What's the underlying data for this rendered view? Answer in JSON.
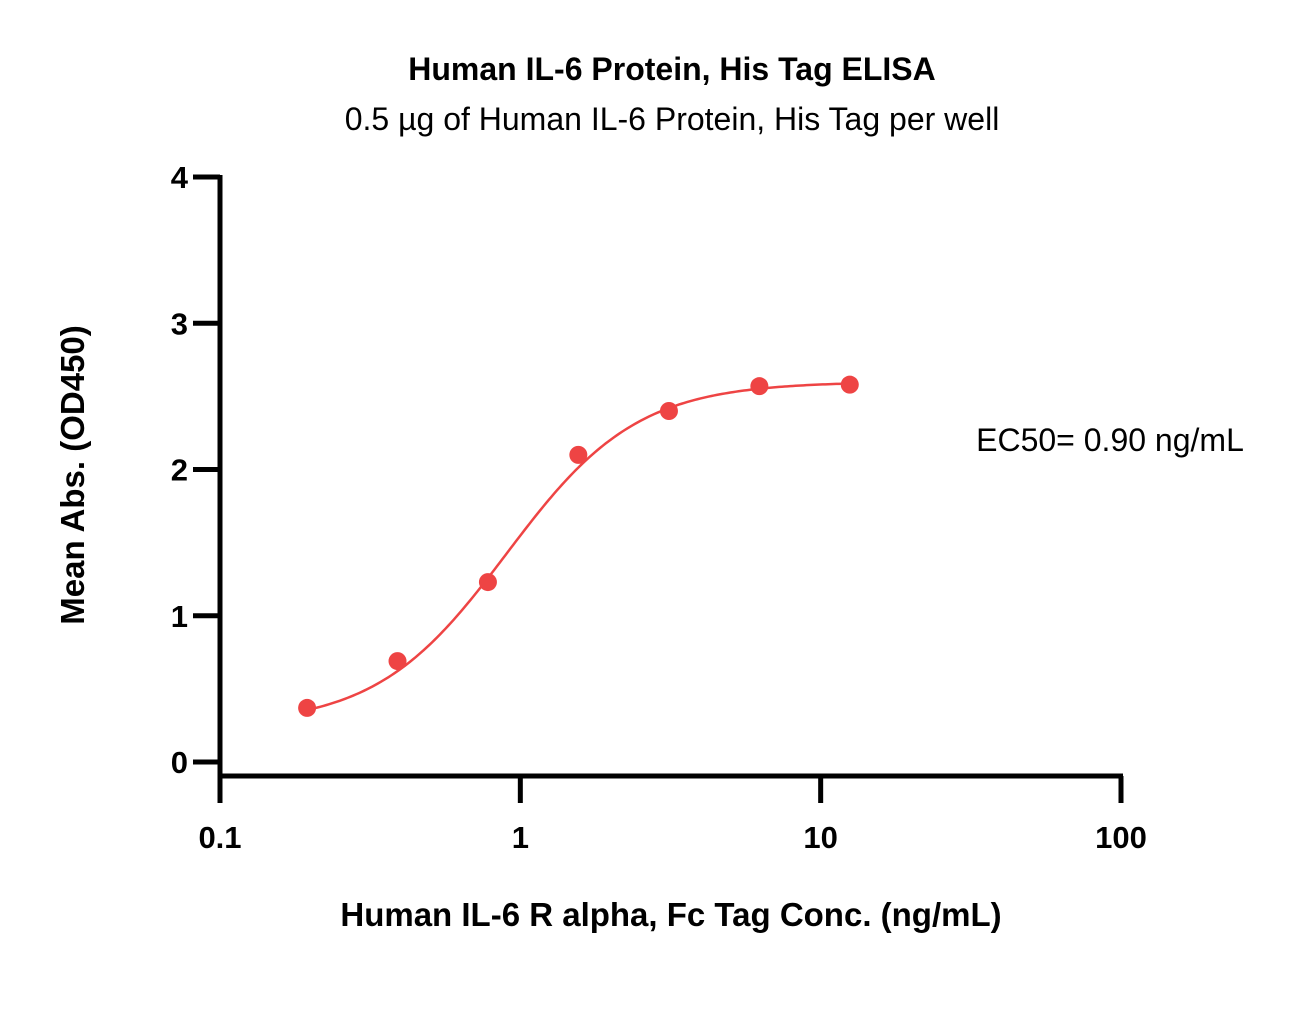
{
  "chart_data": {
    "type": "scatter",
    "title": "Human IL-6 Protein, His Tag ELISA",
    "subtitle": "0.5 µg of Human IL-6 Protein, His Tag per well",
    "xlabel": "Human IL-6 R alpha, Fc Tag Conc. (ng/mL)",
    "ylabel": "Mean Abs. (OD450)",
    "x_scale": "log",
    "xlim": [
      0.1,
      100
    ],
    "ylim": [
      0,
      4
    ],
    "x_ticks": [
      0.1,
      1,
      10,
      100
    ],
    "x_tick_labels": [
      "0.1",
      "1",
      "10",
      "100"
    ],
    "y_ticks": [
      0,
      1,
      2,
      3,
      4
    ],
    "y_tick_labels": [
      "0",
      "1",
      "2",
      "3",
      "4"
    ],
    "grid": false,
    "series": [
      {
        "color": "#ee4444",
        "x": [
          0.195,
          0.39,
          0.78,
          1.56,
          3.125,
          6.25,
          12.5
        ],
        "y": [
          0.37,
          0.69,
          1.23,
          2.1,
          2.4,
          2.57,
          2.58
        ],
        "fit": "4PL",
        "fit_params": {
          "bottom": 0.25,
          "top": 2.6,
          "ec50": 0.9,
          "hill": 2.0
        }
      }
    ],
    "annotations": [
      {
        "text": "EC50= 0.90 ng/mL"
      }
    ]
  }
}
